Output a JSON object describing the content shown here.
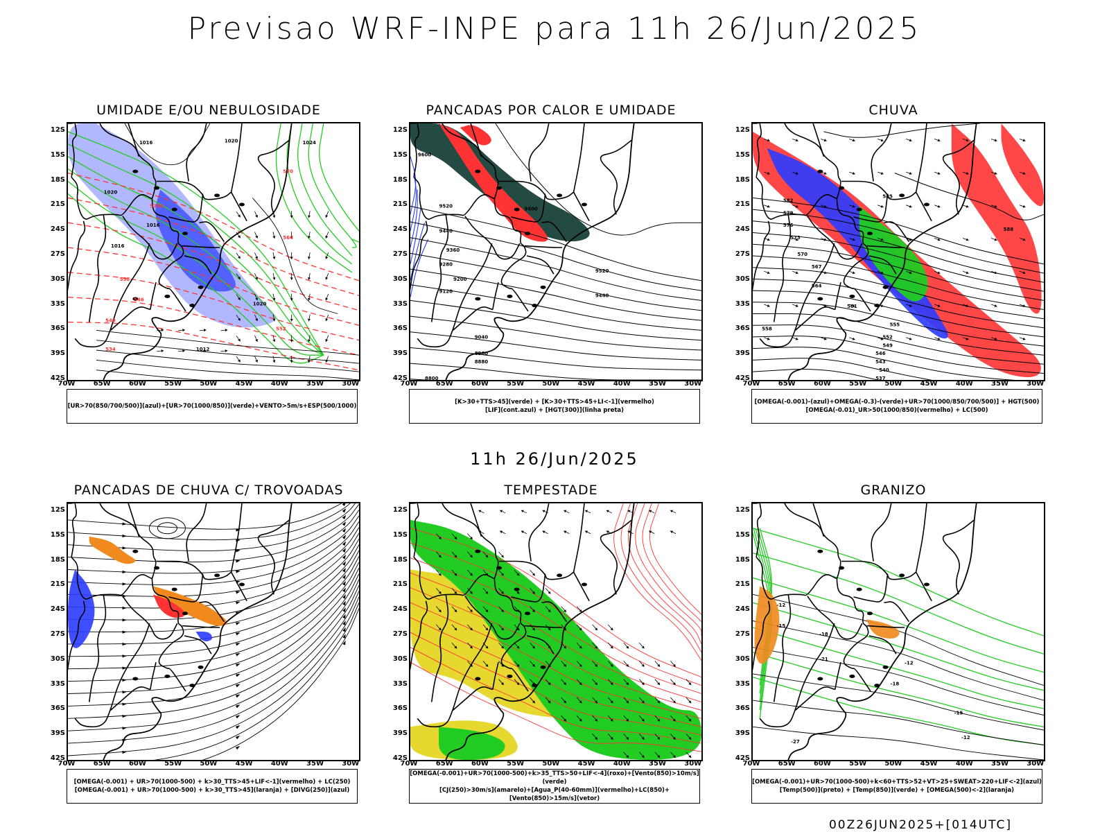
{
  "title": "Previsao WRF-INPE  para 11h 26/Jun/2025",
  "mid_title": "11h 26/Jun/2025",
  "footer": "00Z26JUN2025+[014UTC]",
  "axes": {
    "lat_labels": [
      "12S",
      "15S",
      "18S",
      "21S",
      "24S",
      "27S",
      "30S",
      "33S",
      "36S",
      "39S",
      "42S"
    ],
    "lon_labels": [
      "70W",
      "65W",
      "60W",
      "55W",
      "50W",
      "45W",
      "40W",
      "35W",
      "30W"
    ]
  },
  "colors": {
    "blue": "#2a3cff",
    "light_blue": "#aab0ff",
    "green": "#22cc22",
    "red": "#ff3333",
    "dark_teal": "#244a44",
    "orange": "#f08a1e",
    "yellow": "#e6d82e",
    "purple": "#7a5cff"
  },
  "panels": [
    {
      "id": "umidade",
      "title": "UMIDADE E/OU NEBULOSIDADE",
      "legend": [
        "[UR>70(850/700/500)](azul)+[UR>70(1000/850)](verde)+VENTO>5m/s+ESP(500/1000)"
      ],
      "contour_labels": [
        "1016",
        "1020",
        "1024",
        "1016",
        "1020",
        "1012",
        "1016",
        "1020",
        "5700",
        "564",
        "558",
        "546",
        "540",
        "534",
        "570",
        "552"
      ]
    },
    {
      "id": "pancadas_calor",
      "title": "PANCADAS POR CALOR E UMIDADE",
      "legend": [
        "[K>30+TTS>45](verde) + [K>30+TTS>45+LI<-1](vermelho)",
        "[LIF](cont.azul) + [HGT(300)](linha preta)"
      ],
      "contour_labels": [
        "9600",
        "9520",
        "9440",
        "9360",
        "9280",
        "9200",
        "9120",
        "9040",
        "8960",
        "8880",
        "8800",
        "9600",
        "9520",
        "9440"
      ]
    },
    {
      "id": "chuva",
      "title": "CHUVA",
      "legend": [
        "[OMEGA(-0.001)-(azul)+OMEGA(-0.3)-(verde)+UR>70(1000/850/700/500)] + HGT(500)",
        "[OMEGA(-0.01)_UR>50(1000/850)(vermelho) + LC(500)"
      ],
      "contour_labels": [
        "585",
        "582",
        "579",
        "576",
        "573",
        "570",
        "567",
        "564",
        "561",
        "558",
        "555",
        "552",
        "549",
        "546",
        "543",
        "540",
        "537",
        "588"
      ]
    },
    {
      "id": "pancadas_trovoadas",
      "title": "PANCADAS DE CHUVA C/ TROVOADAS",
      "legend": [
        "[OMEGA(-0.001) + UR>70(1000-500) + k>30_TTS>45+LIF<-1](vermelho) + LC(250)",
        "[OMEGA(-0.001) + UR>70(1000-500) + k>30_TTS>45](laranja) + [DIVG(250)](azul)"
      ],
      "contour_labels": []
    },
    {
      "id": "tempestade",
      "title": "TEMPESTADE",
      "legend": [
        "[OMEGA(-0.001)+UR>70(1000-500)+k>35_TTS>50+LIF<-4](roxo)+[Vento(850)>10m/s](verde)",
        "[CJ(250)>30m/s](amarelo)+[Agua_P(40-60mm)](vermelho)+LC(850)+[Vento(850)>15m/s](vetor)"
      ],
      "contour_labels": []
    },
    {
      "id": "granizo",
      "title": "GRANIZO",
      "legend": [
        "[OMEGA(-0.001)+UR>70(1000-500)+k<60+TTS>52+VT>25+SWEAT>220+LIF<-2](azul)",
        "[Temp(500)](preto) + [Temp(850)](verde) + [OMEGA(500)<-2](laranja)"
      ],
      "contour_labels": [
        "-12",
        "-15",
        "-18",
        "-21",
        "-12",
        "-27",
        "-18",
        "-15",
        "-12"
      ]
    }
  ]
}
